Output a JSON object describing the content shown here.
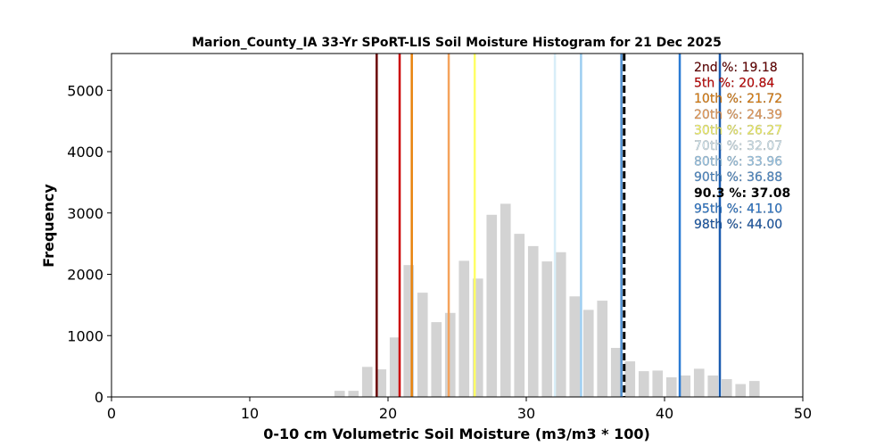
{
  "chart_data": {
    "type": "bar",
    "title": "Marion_County_IA 33-Yr SPoRT-LIS Soil Moisture Histogram for 21 Dec 2025",
    "xlabel": "0-10 cm Volumetric Soil Moisture (m3/m3 * 100)",
    "ylabel": "Frequency",
    "xlim": [
      0,
      50
    ],
    "ylim": [
      0,
      5600
    ],
    "xticks": [
      "0",
      "10",
      "20",
      "30",
      "40",
      "50"
    ],
    "yticks": [
      "0",
      "1000",
      "2000",
      "3000",
      "4000",
      "5000"
    ],
    "grid": false,
    "bar_color": "#d3d3d3",
    "bin_width": 1.0,
    "bins": [
      {
        "x": 16.5,
        "count": 100
      },
      {
        "x": 17.5,
        "count": 100
      },
      {
        "x": 18.5,
        "count": 490
      },
      {
        "x": 19.5,
        "count": 450
      },
      {
        "x": 20.5,
        "count": 970
      },
      {
        "x": 21.5,
        "count": 2150
      },
      {
        "x": 22.5,
        "count": 1700
      },
      {
        "x": 23.5,
        "count": 1220
      },
      {
        "x": 24.5,
        "count": 1370
      },
      {
        "x": 25.5,
        "count": 2220
      },
      {
        "x": 26.5,
        "count": 1930
      },
      {
        "x": 27.5,
        "count": 2970
      },
      {
        "x": 28.5,
        "count": 3150
      },
      {
        "x": 29.5,
        "count": 2660
      },
      {
        "x": 30.5,
        "count": 2460
      },
      {
        "x": 31.5,
        "count": 2210
      },
      {
        "x": 32.5,
        "count": 2360
      },
      {
        "x": 33.5,
        "count": 1640
      },
      {
        "x": 34.5,
        "count": 1420
      },
      {
        "x": 35.5,
        "count": 1570
      },
      {
        "x": 36.5,
        "count": 800
      },
      {
        "x": 37.5,
        "count": 580
      },
      {
        "x": 38.5,
        "count": 420
      },
      {
        "x": 39.5,
        "count": 430
      },
      {
        "x": 40.5,
        "count": 320
      },
      {
        "x": 41.5,
        "count": 350
      },
      {
        "x": 42.5,
        "count": 460
      },
      {
        "x": 43.5,
        "count": 350
      },
      {
        "x": 44.5,
        "count": 290
      },
      {
        "x": 45.5,
        "count": 210
      },
      {
        "x": 46.5,
        "count": 260
      }
    ],
    "percentiles": [
      {
        "label": "2nd %: 19.18",
        "value": 19.18,
        "color": "#6b0000",
        "dashed": false,
        "bold": false
      },
      {
        "label": "5th %: 20.84",
        "value": 20.84,
        "color": "#cc0000",
        "dashed": false,
        "bold": false
      },
      {
        "label": "10th %: 21.72",
        "value": 21.72,
        "color": "#e8820c",
        "dashed": false,
        "bold": false
      },
      {
        "label": "20th %: 24.39",
        "value": 24.39,
        "color": "#f5a35c",
        "dashed": false,
        "bold": false
      },
      {
        "label": "30th %: 26.27",
        "value": 26.27,
        "color": "#ffff66",
        "dashed": false,
        "bold": false
      },
      {
        "label": "70th %: 32.07",
        "value": 32.07,
        "color": "#d8eef8",
        "dashed": false,
        "bold": false
      },
      {
        "label": "80th %: 33.96",
        "value": 33.96,
        "color": "#9ccdf0",
        "dashed": false,
        "bold": false
      },
      {
        "label": "90th %: 36.88",
        "value": 36.88,
        "color": "#4f8fd0",
        "dashed": false,
        "bold": false
      },
      {
        "label": "90.3 %: 37.08",
        "value": 37.08,
        "color": "#000000",
        "dashed": true,
        "bold": true
      },
      {
        "label": "95th %: 41.10",
        "value": 41.1,
        "color": "#2b7bd4",
        "dashed": false,
        "bold": false
      },
      {
        "label": "98th %: 44.00",
        "value": 44.0,
        "color": "#1a5cb0",
        "dashed": false,
        "bold": false
      }
    ],
    "legend_placement": "top-right"
  }
}
